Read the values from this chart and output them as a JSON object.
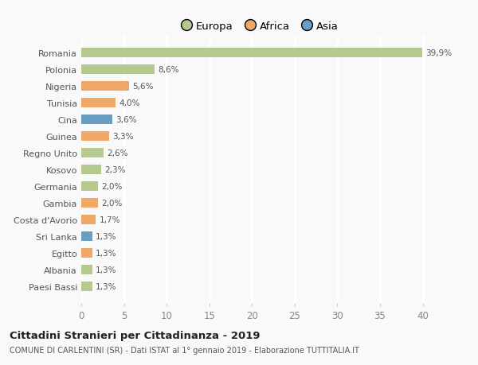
{
  "categories": [
    "Paesi Bassi",
    "Albania",
    "Egitto",
    "Sri Lanka",
    "Costa d'Avorio",
    "Gambia",
    "Germania",
    "Kosovo",
    "Regno Unito",
    "Guinea",
    "Cina",
    "Tunisia",
    "Nigeria",
    "Polonia",
    "Romania"
  ],
  "values": [
    1.3,
    1.3,
    1.3,
    1.3,
    1.7,
    2.0,
    2.0,
    2.3,
    2.6,
    3.3,
    3.6,
    4.0,
    5.6,
    8.6,
    39.9
  ],
  "labels": [
    "1,3%",
    "1,3%",
    "1,3%",
    "1,3%",
    "1,7%",
    "2,0%",
    "2,0%",
    "2,3%",
    "2,6%",
    "3,3%",
    "3,6%",
    "4,0%",
    "5,6%",
    "8,6%",
    "39,9%"
  ],
  "colors": [
    "#b5c98e",
    "#b5c98e",
    "#f0a868",
    "#6b9dc2",
    "#f0a868",
    "#f0a868",
    "#b5c98e",
    "#b5c98e",
    "#b5c98e",
    "#f0a868",
    "#6b9dc2",
    "#f0a868",
    "#f0a868",
    "#b5c98e",
    "#b5c98e"
  ],
  "continent_colors": {
    "Europa": "#b5c98e",
    "Africa": "#f0a868",
    "Asia": "#6b9dc2"
  },
  "xlim": [
    0,
    42
  ],
  "xticks": [
    0,
    5,
    10,
    15,
    20,
    25,
    30,
    35,
    40
  ],
  "title": "Cittadini Stranieri per Cittadinanza - 2019",
  "subtitle": "COMUNE DI CARLENTINI (SR) - Dati ISTAT al 1° gennaio 2019 - Elaborazione TUTTITALIA.IT",
  "background_color": "#f9f9f9",
  "plot_background": "#f9f9f9",
  "grid_color": "#ffffff",
  "bar_height": 0.55
}
